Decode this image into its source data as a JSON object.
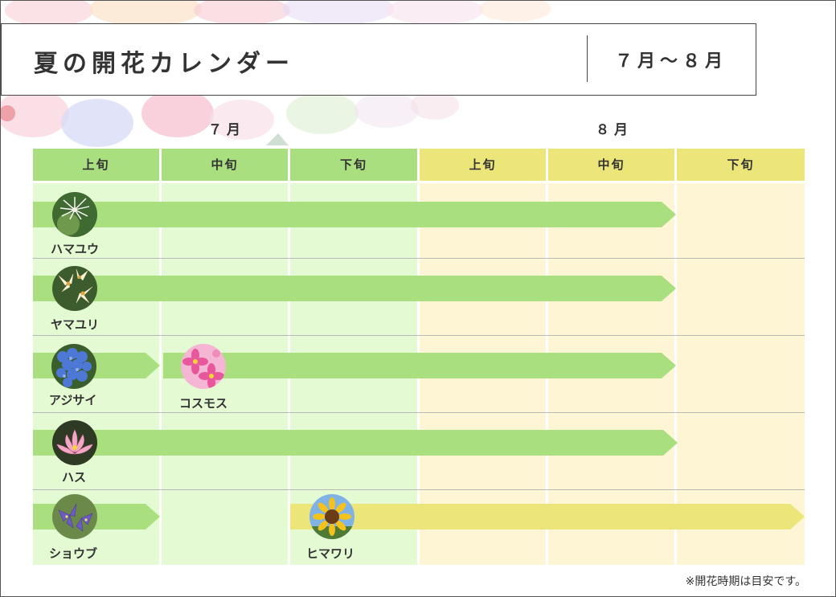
{
  "header": {
    "title": "夏の開花カレンダー",
    "period": "７月～８月"
  },
  "months": {
    "july": "７月",
    "august": "８月"
  },
  "periods": [
    "上旬",
    "中旬",
    "下旬",
    "上旬",
    "中旬",
    "下旬"
  ],
  "flowers": {
    "hamayuu": "ハマユウ",
    "yamayuri": "ヤマユリ",
    "ajisai": "アジサイ",
    "cosmos": "コスモス",
    "hasu": "ハス",
    "shoubu": "ショウブ",
    "himawari": "ヒマワリ"
  },
  "note": "※開花時期は目安です。",
  "colors": {
    "july_header": "#a9df7e",
    "august_header": "#ece57a",
    "july_column": "#e3fad3",
    "august_column": "#fdf5d3",
    "green_arrow": "#a9df7e",
    "yellow_arrow": "#ece57a"
  }
}
